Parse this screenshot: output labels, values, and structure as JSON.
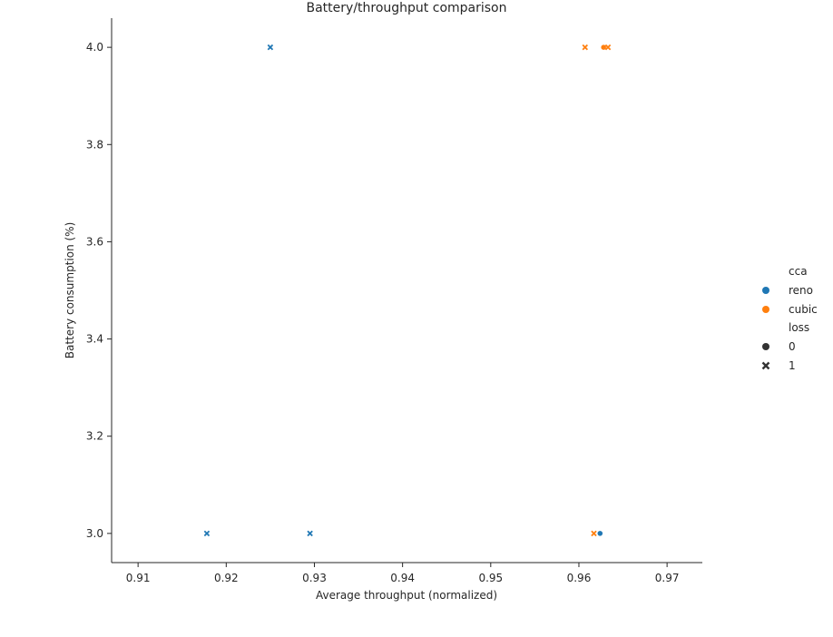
{
  "chart_data": {
    "type": "scatter",
    "title": "Battery/throughput comparison",
    "xlabel": "Average throughput (normalized)",
    "ylabel": "Battery consumption (%)",
    "xlim": [
      0.907,
      0.974
    ],
    "ylim": [
      2.94,
      4.06
    ],
    "x_ticks": [
      "0.91",
      "0.92",
      "0.93",
      "0.94",
      "0.95",
      "0.96",
      "0.97"
    ],
    "y_ticks": [
      "3.0",
      "3.2",
      "3.4",
      "3.6",
      "3.8",
      "4.0"
    ],
    "grid": false,
    "legend_position": "right",
    "legend": {
      "hue_title": "cca",
      "hue": [
        {
          "label": "reno",
          "color": "#1f77b4"
        },
        {
          "label": "cubic",
          "color": "#ff7f0e"
        }
      ],
      "style_title": "loss",
      "style": [
        {
          "label": "0",
          "marker": "circle"
        },
        {
          "label": "1",
          "marker": "x"
        }
      ]
    },
    "points": [
      {
        "x": 0.925,
        "y": 4.0,
        "cca": "reno",
        "loss": "1"
      },
      {
        "x": 0.9178,
        "y": 3.0,
        "cca": "reno",
        "loss": "1"
      },
      {
        "x": 0.9295,
        "y": 3.0,
        "cca": "reno",
        "loss": "1"
      },
      {
        "x": 0.9624,
        "y": 3.0,
        "cca": "reno",
        "loss": "0"
      },
      {
        "x": 0.9607,
        "y": 4.0,
        "cca": "cubic",
        "loss": "1"
      },
      {
        "x": 0.9628,
        "y": 4.0,
        "cca": "cubic",
        "loss": "0"
      },
      {
        "x": 0.9633,
        "y": 4.0,
        "cca": "cubic",
        "loss": "1"
      },
      {
        "x": 0.9617,
        "y": 3.0,
        "cca": "cubic",
        "loss": "1"
      }
    ]
  }
}
